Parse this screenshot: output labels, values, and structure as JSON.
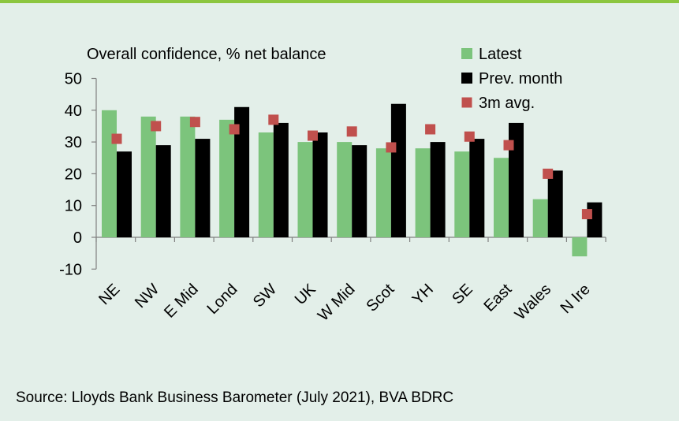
{
  "colors": {
    "background": "#e3efe9",
    "top_rule": "#8cc63f",
    "latest": "#7cc47c",
    "prev_month": "#000000",
    "avg_3m": "#c0504d"
  },
  "chart_data": {
    "type": "bar",
    "title": "Overall confidence, % net balance",
    "categories": [
      "NE",
      "NW",
      "E Mid",
      "Lond",
      "SW",
      "UK",
      "W Mid",
      "Scot",
      "YH",
      "SE",
      "East",
      "Wales",
      "N Ire"
    ],
    "series": [
      {
        "name": "Latest",
        "kind": "bar",
        "color": "#7cc47c",
        "values": [
          40,
          38,
          38,
          37,
          33,
          30,
          30,
          28,
          28,
          27,
          25,
          12,
          -6
        ]
      },
      {
        "name": "Prev. month",
        "kind": "bar",
        "color": "#000000",
        "values": [
          27,
          29,
          31,
          41,
          36,
          33,
          29,
          42,
          30,
          31,
          36,
          21,
          11
        ]
      },
      {
        "name": "3m avg.",
        "kind": "marker",
        "color": "#c0504d",
        "values": [
          31,
          35,
          36.3,
          34,
          37,
          32,
          33.3,
          28.3,
          34,
          31.7,
          29,
          20,
          7.3
        ]
      }
    ],
    "yticks": [
      "50",
      "40",
      "30",
      "20",
      "10",
      "0",
      "-10"
    ],
    "ylim": [
      -10,
      50
    ],
    "grid": false,
    "legend_position": "top-right"
  },
  "source_text": "Source: Lloyds Bank Business Barometer (July 2021), BVA BDRC"
}
